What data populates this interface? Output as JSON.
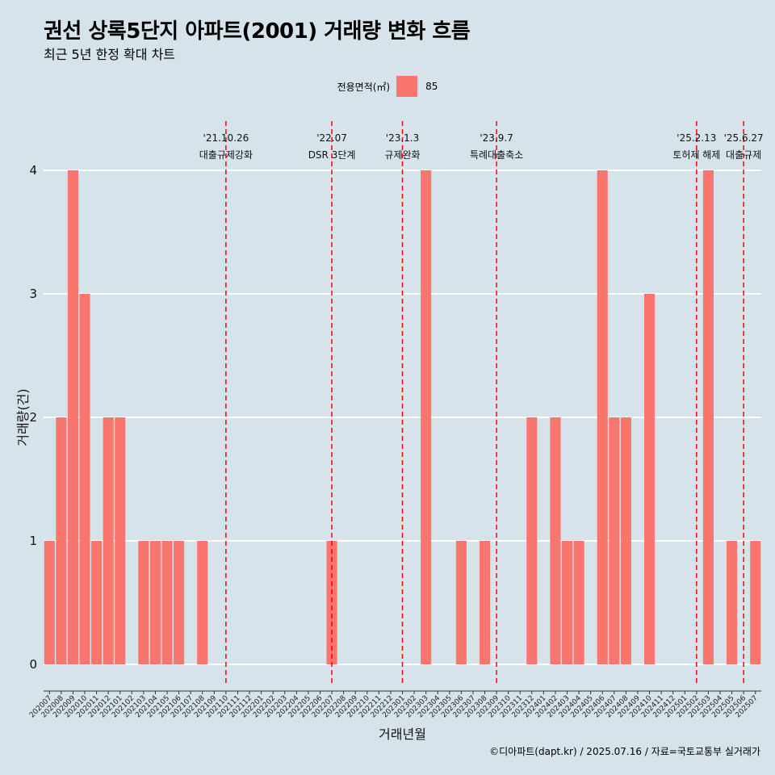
{
  "header": {
    "title": "권선 상록5단지 아파트(2001) 거래량 변화 흐름",
    "subtitle": "최근 5년 한정 확대 차트"
  },
  "legend": {
    "title": "전용면적(㎡)",
    "item": "85"
  },
  "caption": "©디아파트(dapt.kr) / 2025.07.16 / 자료=국토교통부 실거래가",
  "colors": {
    "bar": "#f8766d",
    "vline": "#ff0000",
    "background": "#d6e3ea",
    "grid": "#ffffff"
  },
  "chart_data": {
    "type": "bar",
    "xlabel": "거래년월",
    "ylabel": "거래량(건)",
    "ylim": [
      0,
      4
    ],
    "yticks": [
      0,
      1,
      2,
      3,
      4
    ],
    "categories": [
      "202007",
      "202008",
      "202009",
      "202010",
      "202011",
      "202012",
      "202101",
      "202102",
      "202103",
      "202104",
      "202105",
      "202106",
      "202107",
      "202108",
      "202109",
      "202110",
      "202111",
      "202112",
      "202201",
      "202202",
      "202203",
      "202204",
      "202205",
      "202206",
      "202207",
      "202208",
      "202209",
      "202210",
      "202211",
      "202212",
      "202301",
      "202302",
      "202303",
      "202304",
      "202305",
      "202306",
      "202307",
      "202308",
      "202309",
      "202310",
      "202311",
      "202312",
      "202401",
      "202402",
      "202403",
      "202404",
      "202405",
      "202406",
      "202407",
      "202408",
      "202409",
      "202410",
      "202411",
      "202412",
      "202501",
      "202502",
      "202503",
      "202504",
      "202505",
      "202506",
      "202507"
    ],
    "series": [
      {
        "name": "85",
        "values": [
          1,
          2,
          4,
          3,
          1,
          2,
          2,
          0,
          1,
          1,
          1,
          1,
          0,
          1,
          0,
          0,
          0,
          0,
          0,
          0,
          0,
          0,
          0,
          0,
          1,
          0,
          0,
          0,
          0,
          0,
          0,
          0,
          4,
          0,
          0,
          1,
          0,
          1,
          0,
          0,
          0,
          2,
          0,
          2,
          1,
          1,
          0,
          4,
          2,
          2,
          0,
          3,
          0,
          0,
          0,
          0,
          4,
          0,
          1,
          0,
          1
        ]
      }
    ],
    "grid": true,
    "legend_position": "top",
    "annotations": [
      {
        "date": "'21.10.26",
        "label": "대출규제강화",
        "at": "202110"
      },
      {
        "date": "'22.07",
        "label": "DSR 3단계",
        "at": "202207"
      },
      {
        "date": "'23.1.3",
        "label": "규제완화",
        "at": "202301"
      },
      {
        "date": "'23.9.7",
        "label": "특례대출축소",
        "at": "202309"
      },
      {
        "date": "'25.2.13",
        "label": "토허제 해제",
        "at": "202502"
      },
      {
        "date": "'25.6.27",
        "label": "대출규제",
        "at": "202506"
      }
    ]
  }
}
